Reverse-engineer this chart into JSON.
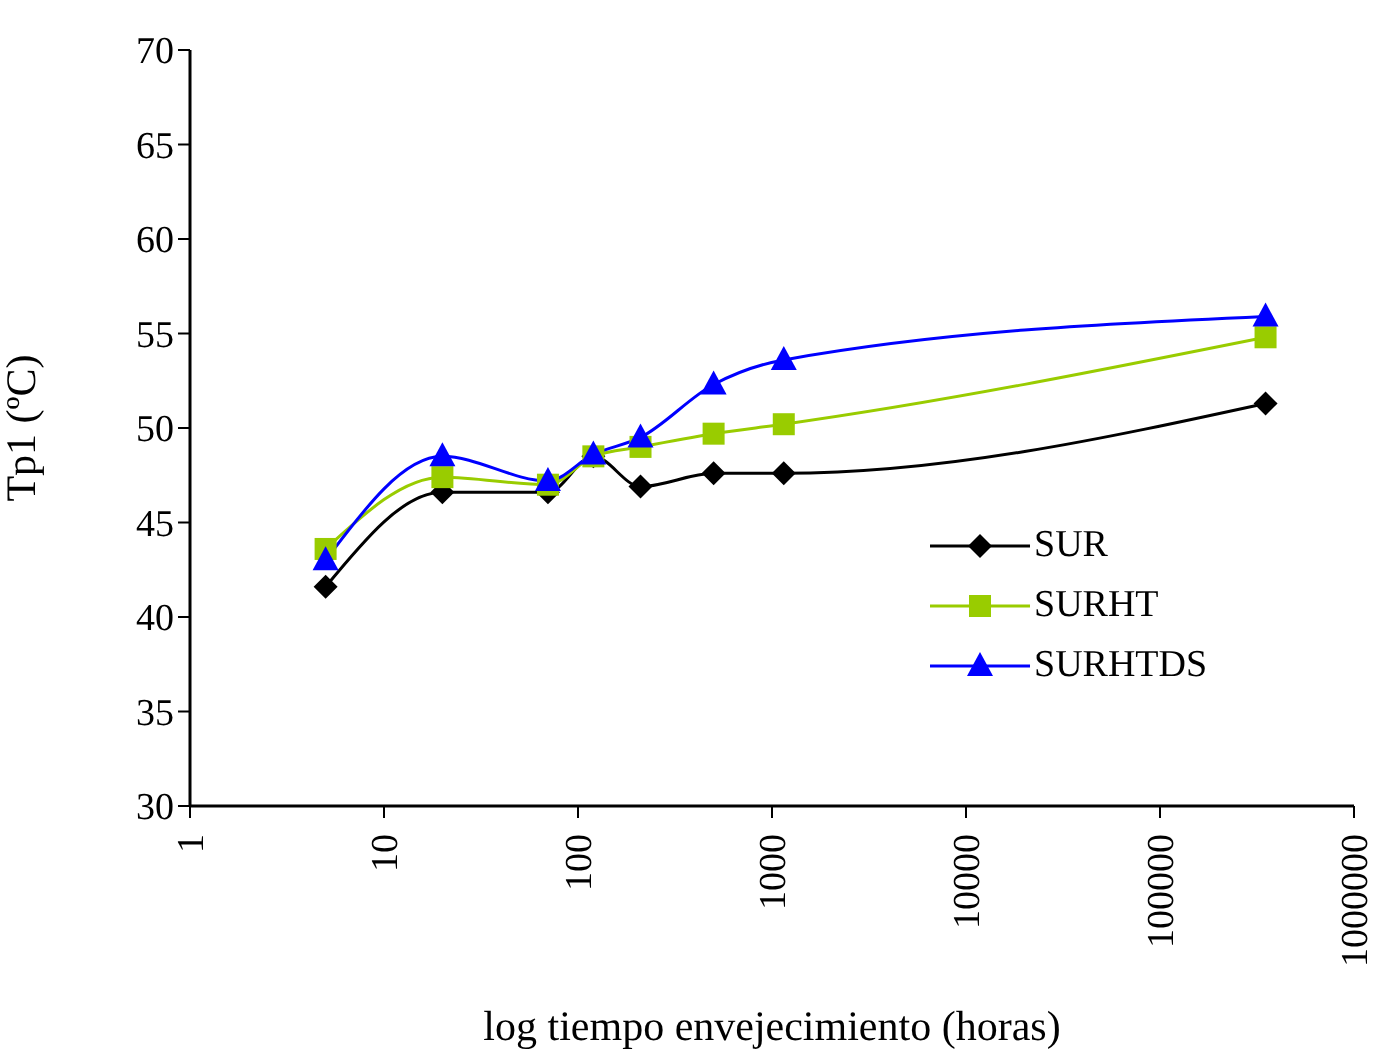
{
  "chart_data": {
    "type": "line",
    "xlabel": "log tiempo envejecimiento (horas)",
    "ylabel": "Tp1 (ºC)",
    "log": "x",
    "x": [
      5,
      20,
      70,
      120,
      210,
      500,
      1150,
      350000
    ],
    "xlim": [
      1,
      1000000
    ],
    "xticks": [
      1,
      10,
      100,
      1000,
      10000,
      100000,
      1000000
    ],
    "ylim": [
      30,
      70
    ],
    "yticks": [
      30,
      35,
      40,
      45,
      50,
      55,
      60,
      65,
      70
    ],
    "grid": false,
    "legend": "bottom right",
    "line_style": "solid",
    "series": [
      {
        "name": "SUR",
        "color": "#000000",
        "marker": "diamond",
        "values": [
          41.6,
          46.6,
          46.6,
          48.5,
          46.9,
          47.6,
          47.6,
          51.3
        ]
      },
      {
        "name": "SURHT",
        "color": "#99cc00",
        "marker": "square",
        "values": [
          43.6,
          47.4,
          47.0,
          48.5,
          49.0,
          49.7,
          50.2,
          54.8
        ]
      },
      {
        "name": "SURHTDS",
        "color": "#0000ff",
        "marker": "triangle",
        "values": [
          43.0,
          48.5,
          47.2,
          48.6,
          49.5,
          52.3,
          53.6,
          55.9
        ]
      }
    ]
  }
}
